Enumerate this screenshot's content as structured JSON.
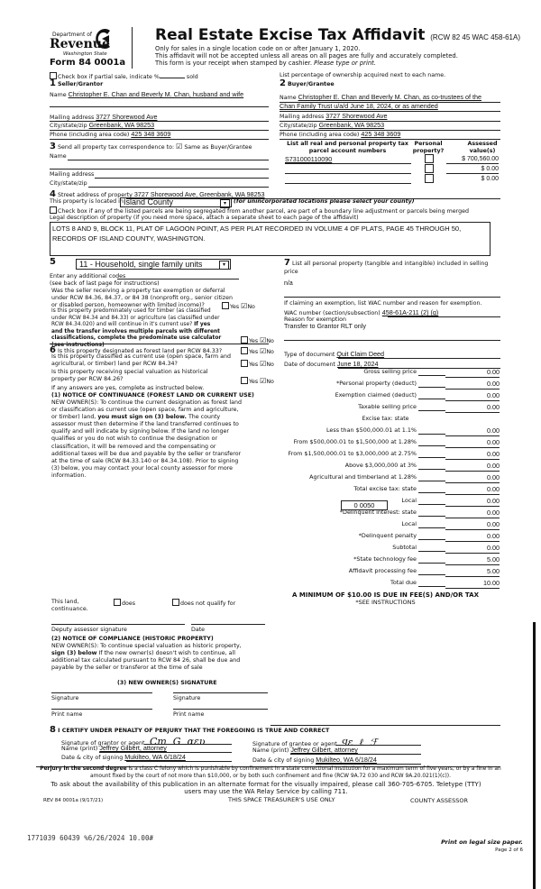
{
  "header": {
    "dept": "Department of",
    "revenue": "Revenue",
    "state": "Washington State",
    "form": "Form 84 0001a",
    "title": "Real Estate Excise Tax Affidavit",
    "rcw": "(RCW 82 45 WAC 458-61A)",
    "line1": "Only for sales in a single location code on or after January 1, 2020.",
    "line2": "This affidavit will not be accepted unless all areas on all pages are fully and accurately completed.",
    "line3": "This form is your receipt when stamped by cashier.",
    "line3_italic": "Please type or print."
  },
  "partial_sale": {
    "label": "Check box if partial sale, indicate %",
    "sold": "sold",
    "checked": false
  },
  "ownership_note": "List percentage of ownership acquired next to each name.",
  "seller": {
    "num": "1",
    "title": "Seller/Grantor",
    "name_label": "Name",
    "name": "Christopher E. Chan and Beverly M.  Chan, husband and wife",
    "mailing_label": "Mailing address",
    "mailing": "3727 Shorewood Ave",
    "city_label": "City/state/zip",
    "city": "Greenbank, WA 98253",
    "phone_label": "Phone (including area code)",
    "phone": "425 348 3609"
  },
  "buyer": {
    "num": "2",
    "title": "Buyer/Grantee",
    "name_label": "Name",
    "name": "Christopher E. Chan and Beverly M. Chan, as co-trustees of the",
    "name2": "Chan Family Trust u/a/d June 18, 2024, or as amended",
    "mailing_label": "Mailing address",
    "mailing": "3727 Shorewood Ave",
    "city_label": "City/state/zip",
    "city": "Greenbank, WA 98253",
    "phone_label": "Phone (including area code)",
    "phone": "425 348 3609"
  },
  "correspondence": {
    "num": "3",
    "label": "Send all property tax correspondence to:",
    "same_label": "Same as Buyer/Grantee",
    "same_checked": true,
    "name_label": "Name",
    "mailing_label": "Mailing address",
    "city_label": "City/state/zip"
  },
  "parcels": {
    "col1": "List all real and personal property tax",
    "col1b": "parcel account numbers",
    "col2": "Personal",
    "col2b": "property?",
    "col3": "Assessed",
    "col3b": "value(s)",
    "rows": [
      {
        "parcel": "S731000110090",
        "personal": false,
        "value": "$ 700,560.00"
      },
      {
        "parcel": "",
        "personal": false,
        "value": "$ 0.00"
      },
      {
        "parcel": "",
        "personal": false,
        "value": "$ 0.00"
      }
    ]
  },
  "property": {
    "num": "4",
    "street_label": "Street address of property",
    "street": "3727 Shorewood Ave, Greenbank, WA 98253",
    "located_label": "This property is located in",
    "county": "Island County",
    "county_note": "(for unincorporated locations please select your county)",
    "segregated_label": "Check box if any of the listed parcels are being segregated from another parcel, are part of a boundary line adjustment or parcels being merged",
    "legal_label": "Legal description of property (if you need more space, attach a separate sheet to each page of the affidavit)",
    "legal": "LOTS 8 AND 9, BLOCK 11, PLAT OF LAGOON POINT, AS PER PLAT RECORDED IN VOLUME 4 OF PLATS, PAGE 45 THROUGH 50, RECORDS OF ISLAND COUNTY, WASHINGTON."
  },
  "use": {
    "num": "5",
    "code": "11 - Household, single family units",
    "additional_label": "Enter any additional codes",
    "additional_note": "(see back of last page for instructions)",
    "exemption_q": "Was the seller receiving a property tax exemption or deferral under RCW 84.36, 84.37, or 84 38 (nonprofit org., senior citizen or disabled person, homeowner with limited income)?",
    "timber_q": "Is this property predominately used for timber (as classified under RCW 84.34 and 84.33) or agriculture (as classified under RCW 84.34.020) and will continue in it's current use?",
    "timber_q_bold": "If yes and the transfer involves multiple parcels with different classifications, complete the predominate use calculator (see instructions)",
    "yes": "Yes",
    "no": "No"
  },
  "forest": {
    "num": "6",
    "q1": "Is this property designated as forest land per RCW 84.33?",
    "q2": "Is this property classified as current use (open space, farm and agricultural, or timber) land per RCW 84.34?",
    "q3": "Is this property receiving special valuation as historical property per RCW 84.26?",
    "if_yes": "If any answers are yes, complete as instructed below.",
    "n1_title": "(1) NOTICE OF CONTINUANCE (FOREST LAND OR CURRENT USE)",
    "n1_a": "NEW OWNER(S): To continue the current designation as forest land or classification as current use (open space, farm and agriculture, or timber) land,",
    "n1_bold": "you must sign on (3) below.",
    "n1_b": "The county assessor must then determine if the land transferred continues to qualify and will indicate by signing below. If the land no longer qualifies or you do not wish to continue the designation or classification, it will be removed and the compensating or additional taxes will be due and payable by the seller or transferor at the time of sale (RCW 84.33.140 or 84.34.108). Prior to signing (3) below, you may contact your local county assessor for more information.",
    "this_land": "This land,",
    "continuance": "continuance.",
    "does": "does",
    "does_not": "does not qualify for",
    "deputy": "Deputy assessor signature",
    "date": "Date",
    "n2_title": "(2) NOTICE OF COMPLIANCE (HISTORIC PROPERTY)",
    "n2_a": "NEW OWNER(S): To continue special valuation as historic property,",
    "n2_bold": "sign (3) below",
    "n2_b": "If the new owner(s) doesn't wish to continue, all additional tax calculated pursuant to RCW 84 26, shall be due and payable by the seller or transferor at the time of sale",
    "n3_title": "(3) NEW OWNER(S) SIGNATURE",
    "signature": "Signature",
    "print_name": "Print name"
  },
  "personal": {
    "num": "7",
    "label": "List all personal property (tangible and intangible) included in selling price",
    "value": "n/a",
    "exemption_label": "If claiming an exemption, list WAC number and reason for exemption.",
    "wac_label": "WAC number (section/subsection)",
    "wac": "458-61A-211 (2) (g)",
    "reason_label": "Reason for exemption",
    "reason": "Transfer to Grantor RLT only",
    "doc_type_label": "Type of document",
    "doc_type": "Quit Claim Deed",
    "doc_date_label": "Date of document",
    "doc_date": "June 18, 2024"
  },
  "tax": {
    "rows": [
      {
        "label": "Gross selling price",
        "value": "0.00"
      },
      {
        "label": "*Personal property (deduct)",
        "value": "0.00"
      },
      {
        "label": "Exemption claimed (deduct)",
        "value": "0.00"
      },
      {
        "label": "Taxable selling price",
        "value": "0.00"
      },
      {
        "label": "Excise tax: state",
        "value": null
      },
      {
        "label": "Less than $500,000.01 at 1.1%",
        "value": "0.00"
      },
      {
        "label": "From $500,000.01 to $1,500,000 at 1.28%",
        "value": "0.00"
      },
      {
        "label": "From $1,500,000.01 to $3,000,000 at 2.75%",
        "value": "0.00"
      },
      {
        "label": "Above $3,000,000 at 3%",
        "value": "0.00"
      },
      {
        "label": "Agricultural and timberland at 1.28%",
        "value": "0.00"
      },
      {
        "label": "Total excise tax: state",
        "value": "0.00"
      },
      {
        "label": "Local",
        "value": "0.00"
      },
      {
        "label": "*Delinquent interest: state",
        "value": "0.00"
      },
      {
        "label": "Local",
        "value": "0.00"
      },
      {
        "label": "*Delinquent penalty",
        "value": "0.00"
      },
      {
        "label": "Subtotal",
        "value": "0.00"
      },
      {
        "label": "*State technology fee",
        "value": "5.00"
      },
      {
        "label": "Affidavit processing fee",
        "value": "5.00"
      },
      {
        "label": "Total due",
        "value": "10.00"
      }
    ],
    "local_rate": "0 0050",
    "minimum": "A MINIMUM OF $10.00 IS DUE IN FEE(S) AND/OR TAX",
    "see": "*SEE INSTRUCTIONS"
  },
  "certify": {
    "num": "8",
    "title": "I CERTIFY UNDER PENALTY OF PERJURY THAT THE FOREGOING IS TRUE AND CORRECT",
    "grantor_sig_label": "Signature of grantor or agent",
    "grantee_sig_label": "Signature of grantee or agent",
    "name_label": "Name (print)",
    "grantor_name": "Jeffrey Gilbert, attorney",
    "grantee_name": "Jeffrey Gilbert, attorney",
    "date_label": "Date & city of signing",
    "grantor_date": "Mukilteo, WA 6/18/24",
    "grantee_date": "Mukilteo, WA 6/18/24"
  },
  "footer": {
    "perjury_bold": "Perjury in the second degree",
    "perjury": "is a class C felony which is punishable by confinement in a state correctional institution for a maximum term of five years, or by a fine in an amount fixed by the court of not more than $10,000, or by both such confinement and fine (RCW 9A.72 030 and RCW 9A.20.021(1)(c)).",
    "alt_format": "To ask about the availability of this publication in an alternate format for the visually impaired, please call 360-705-6705. Teletype (TTY) users may use the WA Relay Service by calling 711.",
    "rev": "REV 84 0001a (9/17/21)",
    "treasurer": "THIS SPACE TREASURER'S USE ONLY",
    "assessor": "COUNTY ASSESSOR",
    "stamp": "1771039 60439 %6/26/2024 10.00#",
    "legal_paper": "Print on legal size paper.",
    "page": "Page 2 of 6"
  }
}
